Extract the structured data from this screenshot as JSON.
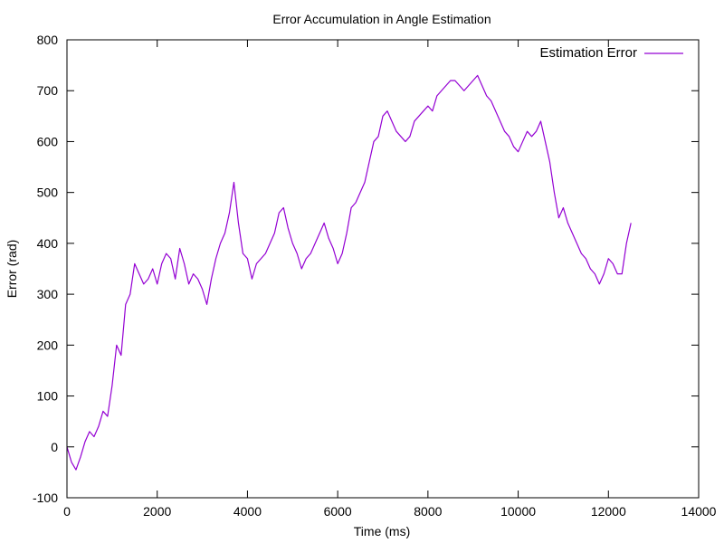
{
  "chart_data": {
    "type": "line",
    "title": "Error Accumulation in Angle Estimation",
    "xlabel": "Time (ms)",
    "ylabel": "Error (rad)",
    "xlim": [
      0,
      14000
    ],
    "ylim": [
      -100,
      800
    ],
    "x_ticks": [
      0,
      2000,
      4000,
      6000,
      8000,
      10000,
      12000,
      14000
    ],
    "y_ticks": [
      -100,
      0,
      100,
      200,
      300,
      400,
      500,
      600,
      700,
      800
    ],
    "grid": false,
    "legend_position": "top-right",
    "series": [
      {
        "name": "Estimation Error",
        "color": "#9400d3",
        "x": [
          0,
          100,
          200,
          300,
          400,
          500,
          600,
          700,
          800,
          900,
          1000,
          1100,
          1200,
          1300,
          1400,
          1500,
          1600,
          1700,
          1800,
          1900,
          2000,
          2100,
          2200,
          2300,
          2400,
          2500,
          2600,
          2700,
          2800,
          2900,
          3000,
          3100,
          3200,
          3300,
          3400,
          3500,
          3600,
          3700,
          3800,
          3900,
          4000,
          4100,
          4200,
          4300,
          4400,
          4500,
          4600,
          4700,
          4800,
          4900,
          5000,
          5100,
          5200,
          5300,
          5400,
          5500,
          5600,
          5700,
          5800,
          5900,
          6000,
          6100,
          6200,
          6300,
          6400,
          6500,
          6600,
          6700,
          6800,
          6900,
          7000,
          7100,
          7200,
          7300,
          7400,
          7500,
          7600,
          7700,
          7800,
          7900,
          8000,
          8100,
          8200,
          8300,
          8400,
          8500,
          8600,
          8700,
          8800,
          8900,
          9000,
          9100,
          9200,
          9300,
          9400,
          9500,
          9600,
          9700,
          9800,
          9900,
          10000,
          10100,
          10200,
          10300,
          10400,
          10500,
          10600,
          10700,
          10800,
          10900,
          11000,
          11100,
          11200,
          11300,
          11400,
          11500,
          11600,
          11700,
          11800,
          11900,
          12000,
          12100,
          12200,
          12300,
          12400,
          12500
        ],
        "values": [
          0,
          -30,
          -45,
          -20,
          10,
          30,
          20,
          40,
          70,
          60,
          120,
          200,
          180,
          280,
          300,
          360,
          340,
          320,
          330,
          350,
          320,
          360,
          380,
          370,
          330,
          390,
          360,
          320,
          340,
          330,
          310,
          280,
          330,
          370,
          400,
          420,
          460,
          520,
          440,
          380,
          370,
          330,
          360,
          370,
          380,
          400,
          420,
          460,
          470,
          430,
          400,
          380,
          350,
          370,
          380,
          400,
          420,
          440,
          410,
          390,
          360,
          380,
          420,
          470,
          480,
          500,
          520,
          560,
          600,
          610,
          650,
          660,
          640,
          620,
          610,
          600,
          610,
          640,
          650,
          660,
          670,
          660,
          690,
          700,
          710,
          720,
          720,
          710,
          700,
          710,
          720,
          730,
          710,
          690,
          680,
          660,
          640,
          620,
          610,
          590,
          580,
          600,
          620,
          610,
          620,
          640,
          600,
          560,
          500,
          450,
          470,
          440,
          420,
          400,
          380,
          370,
          350,
          340,
          320,
          340,
          370,
          360,
          340,
          340,
          400,
          440
        ]
      }
    ]
  }
}
